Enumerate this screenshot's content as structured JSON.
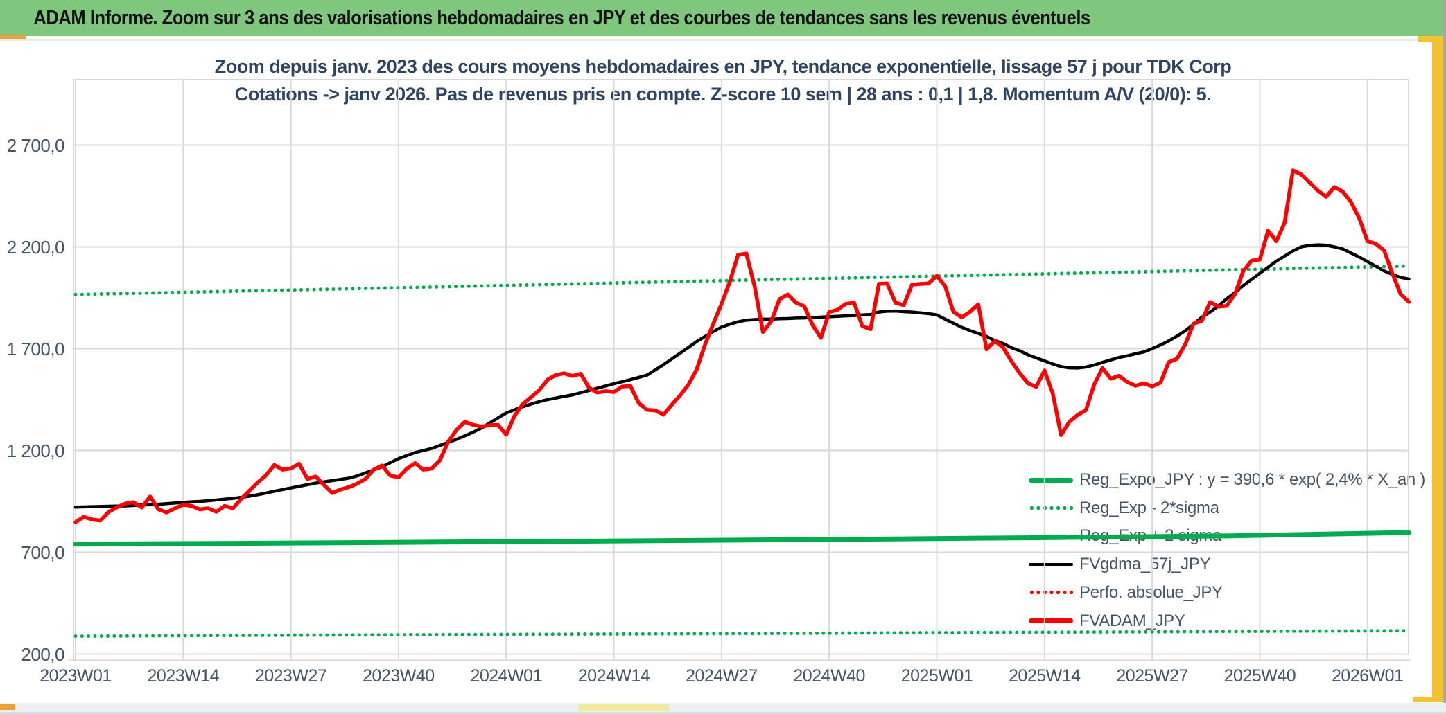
{
  "header": {
    "title": "ADAM Informe. Zoom sur 3 ans des valorisations hebdomadaires en JPY et des courbes de tendances sans les revenus éventuels"
  },
  "colors": {
    "header_bg": "#7EC77D",
    "title_color": "#2E4562",
    "axis_label_color": "#44546A",
    "grid": "#D9D9D9",
    "green_line": "#00AC4E",
    "red_line": "#FF0000",
    "black_line": "#000000",
    "yellow_border": "#F2C230",
    "orange_accent": "#E9A33C",
    "footer_bg": "#EDF0F2",
    "pale_yellow": "#F1E9A0"
  },
  "chart_data": {
    "type": "line",
    "title": "Zoom depuis janv. 2023 des cours moyens hebdomadaires en JPY, tendance exponentielle, lissage 57 j pour TDK Corp",
    "subtitle": "Cotations -> janv 2026. Pas de revenus pris en compte. Z-score 10 sem | 28 ans : 0,1 | 1,8. Momentum A/V (20/0): 5.",
    "x_tick_labels": [
      "2023W01",
      "2023W14",
      "2023W27",
      "2023W40",
      "2024W01",
      "2024W14",
      "2024W27",
      "2024W40",
      "2025W01",
      "2025W14",
      "2025W27",
      "2025W40",
      "2026W01"
    ],
    "y_tick_labels": [
      "2 700,0",
      "2 200,0",
      "1 700,0",
      "1 200,0",
      "700,0",
      "200,0"
    ],
    "y_axis": {
      "gridline_values": [
        2700,
        2200,
        1700,
        1200,
        700,
        200
      ],
      "min": 200,
      "max": 2950
    },
    "x_axis": {
      "weeks_per_tick": 13,
      "total_weeks": 161,
      "grid": true
    },
    "legend_position": "inside-bottom-right",
    "legend": [
      {
        "label": "Reg_Expo_JPY : y = 390,6 * exp( 2,4% *  X_an )",
        "series": "Reg_Expo_JPY",
        "style": "solid",
        "color_key": "green_line",
        "thickness": 7
      },
      {
        "label": "Reg_Exp - 2*sigma",
        "series": "Reg_Exp_minus_2sigma",
        "style": "dotted",
        "color_key": "green_line"
      },
      {
        "label": "Reg_Exp + 2 sigma",
        "series": "Reg_Exp_plus_2sigma",
        "style": "dotted",
        "color_key": "green_line"
      },
      {
        "label": "FVgdma_57j_JPY",
        "series": "FVgdma_57j_JPY",
        "style": "solid",
        "color_key": "black_line",
        "thickness": 4
      },
      {
        "label": "Perfo. absolue_JPY",
        "series": "Perfo_absolue_JPY",
        "style": "dotted",
        "color_key": "red_line"
      },
      {
        "label": "FVADAM_JPY",
        "series": "FVADAM_JPY",
        "style": "solid",
        "color_key": "red_line",
        "thickness": 7
      }
    ],
    "series": {
      "FVADAM_JPY": {
        "color_key": "red_line",
        "style": "solid",
        "width": 5.5,
        "weekly_values": [
          848,
          874,
          861,
          856,
          898,
          921,
          939,
          946,
          920,
          974,
          911,
          896,
          916,
          934,
          928,
          911,
          916,
          899,
          928,
          916,
          962,
          1003,
          1043,
          1078,
          1129,
          1106,
          1112,
          1135,
          1060,
          1072,
          1031,
          991,
          1008,
          1020,
          1037,
          1060,
          1106,
          1126,
          1077,
          1068,
          1111,
          1138,
          1106,
          1111,
          1152,
          1244,
          1301,
          1341,
          1326,
          1318,
          1324,
          1326,
          1278,
          1370,
          1428,
          1462,
          1497,
          1548,
          1571,
          1579,
          1566,
          1577,
          1508,
          1485,
          1491,
          1487,
          1514,
          1517,
          1433,
          1400,
          1397,
          1376,
          1425,
          1471,
          1523,
          1598,
          1719,
          1822,
          1920,
          2029,
          2161,
          2167,
          2006,
          1782,
          1834,
          1943,
          1966,
          1926,
          1908,
          1816,
          1753,
          1880,
          1891,
          1920,
          1926,
          1811,
          1796,
          2018,
          2020,
          1926,
          1914,
          2014,
          2018,
          2020,
          2058,
          2007,
          1881,
          1854,
          1881,
          1918,
          1697,
          1737,
          1706,
          1639,
          1580,
          1530,
          1513,
          1593,
          1480,
          1276,
          1341,
          1375,
          1398,
          1524,
          1605,
          1553,
          1567,
          1536,
          1518,
          1530,
          1515,
          1533,
          1634,
          1651,
          1722,
          1823,
          1837,
          1929,
          1906,
          1910,
          1968,
          2081,
          2132,
          2138,
          2279,
          2228,
          2319,
          2576,
          2556,
          2517,
          2477,
          2446,
          2494,
          2472,
          2421,
          2341,
          2228,
          2215,
          2183,
          2070,
          1968,
          1930
        ]
      },
      "FVgdma_57j_JPY": {
        "color_key": "black_line",
        "style": "solid",
        "width": 4.5,
        "weekly_values": [
          922,
          923,
          924,
          925,
          926,
          927,
          928,
          930,
          932,
          934,
          936,
          939,
          942,
          945,
          948,
          950,
          953,
          957,
          961,
          965,
          970,
          976,
          983,
          991,
          1000,
          1008,
          1016,
          1024,
          1032,
          1040,
          1046,
          1052,
          1058,
          1064,
          1075,
          1090,
          1105,
          1120,
          1140,
          1160,
          1175,
          1190,
          1200,
          1210,
          1225,
          1240,
          1255,
          1272,
          1290,
          1310,
          1335,
          1360,
          1384,
          1400,
          1415,
          1428,
          1440,
          1450,
          1458,
          1466,
          1473,
          1484,
          1495,
          1506,
          1517,
          1528,
          1538,
          1548,
          1559,
          1570,
          1596,
          1622,
          1650,
          1678,
          1706,
          1735,
          1760,
          1784,
          1806,
          1820,
          1832,
          1840,
          1843,
          1845,
          1845,
          1847,
          1848,
          1850,
          1851,
          1853,
          1855,
          1857,
          1859,
          1861,
          1863,
          1866,
          1868,
          1880,
          1884,
          1885,
          1882,
          1880,
          1876,
          1872,
          1866,
          1845,
          1825,
          1805,
          1789,
          1775,
          1760,
          1740,
          1725,
          1705,
          1690,
          1670,
          1655,
          1640,
          1625,
          1612,
          1606,
          1605,
          1610,
          1620,
          1633,
          1645,
          1657,
          1665,
          1675,
          1684,
          1700,
          1718,
          1738,
          1762,
          1788,
          1820,
          1855,
          1880,
          1910,
          1945,
          1975,
          2010,
          2040,
          2070,
          2100,
          2130,
          2155,
          2180,
          2200,
          2207,
          2210,
          2208,
          2200,
          2190,
          2170,
          2150,
          2128,
          2105,
          2082,
          2065,
          2050,
          2042
        ]
      },
      "Reg_Expo_JPY": {
        "color_key": "green_line",
        "style": "solid",
        "width": 7,
        "points": [
          [
            0,
            740
          ],
          [
            20,
            744
          ],
          [
            40,
            749
          ],
          [
            60,
            754
          ],
          [
            80,
            760
          ],
          [
            100,
            766
          ],
          [
            120,
            773
          ],
          [
            140,
            781
          ],
          [
            161,
            797
          ]
        ]
      },
      "Reg_Exp_plus_2sigma": {
        "color_key": "green_line",
        "style": "dotted",
        "width": 5,
        "points": [
          [
            0,
            1966
          ],
          [
            40,
            2000
          ],
          [
            80,
            2036
          ],
          [
            120,
            2070
          ],
          [
            161,
            2106
          ]
        ]
      },
      "Reg_Exp_minus_2sigma": {
        "color_key": "green_line",
        "style": "dotted",
        "width": 5,
        "points": [
          [
            0,
            288
          ],
          [
            40,
            295
          ],
          [
            80,
            301
          ],
          [
            120,
            308
          ],
          [
            161,
            315
          ]
        ]
      },
      "Perfo_absolue_JPY": {
        "color_key": "red_line",
        "style": "dotted",
        "width": 4,
        "overlaps_series": "FVADAM_JPY"
      }
    }
  }
}
